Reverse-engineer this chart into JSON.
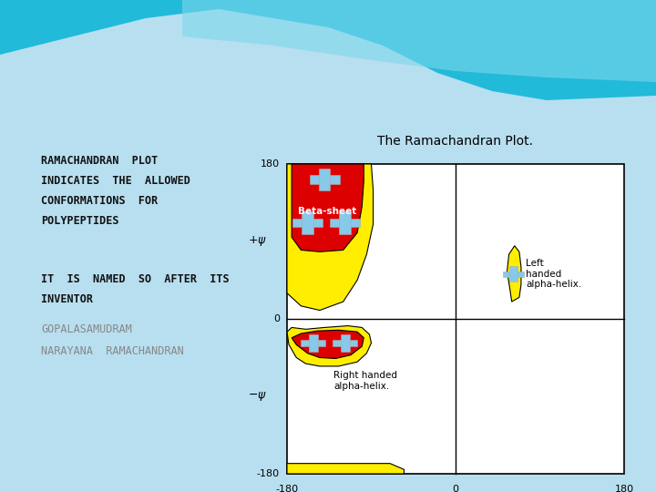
{
  "bg_color": "#b8dff0",
  "slide_title_lines": [
    "RAMACHANDRAN  PLOT",
    "INDICATES  THE  ALLOWED",
    "CONFORMATIONS  FOR",
    "POLYPEPTIDES"
  ],
  "slide_body_line1": "IT  IS  NAMED  SO  AFTER  ITS",
  "slide_body_line2": "INVENTOR",
  "inventor_line1": "GOPALASAMUDRAM",
  "inventor_line2": "NARAYANA  RAMACHANDRAN",
  "plot_title": "The Ramachandran Plot.",
  "yellow": "#FFEE00",
  "red": "#DD0000",
  "blue_cross": "#88c8e8",
  "plot_bg": "#ffffff",
  "wave_top_color": "#1ab8d8",
  "wave_mid_color": "#7dd8ec"
}
